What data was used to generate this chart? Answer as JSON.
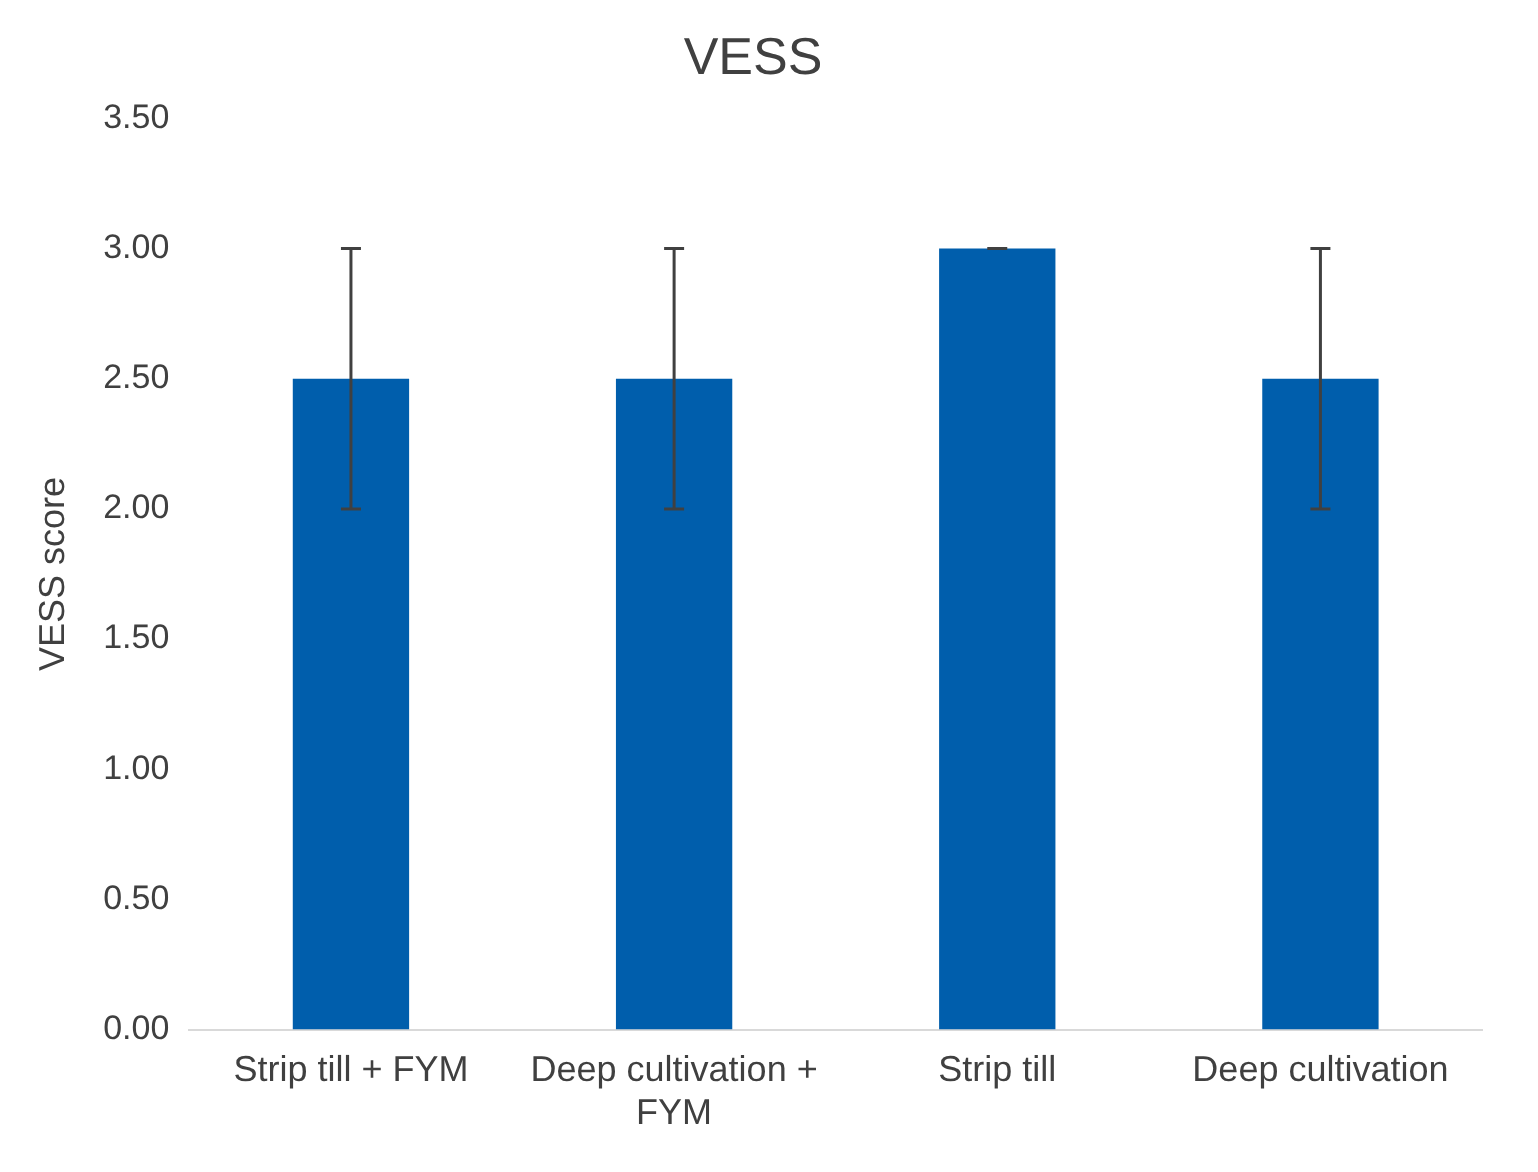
{
  "chart_data": {
    "type": "bar",
    "title": "VESS",
    "ylabel": "VESS score",
    "categories": [
      "Strip till + FYM",
      "Deep cultivation + FYM",
      "Strip till",
      "Deep cultivation"
    ],
    "values": [
      2.5,
      2.5,
      3.0,
      2.5
    ],
    "color": "#005eac",
    "errors": [
      0.5,
      0.5,
      0,
      0.5
    ],
    "ylim": [
      0,
      3.5
    ],
    "yticks": [
      {
        "value": 0,
        "label": "0.00"
      },
      {
        "value": 0.5,
        "label": "0.50"
      },
      {
        "value": 1,
        "label": "1.00"
      },
      {
        "value": 1.5,
        "label": "1.50"
      },
      {
        "value": 2,
        "label": "2.00"
      },
      {
        "value": 2.5,
        "label": "2.50"
      },
      {
        "value": 3,
        "label": "3.00"
      },
      {
        "value": 3.5,
        "label": "3.50"
      }
    ],
    "grid": false,
    "legend": false
  }
}
